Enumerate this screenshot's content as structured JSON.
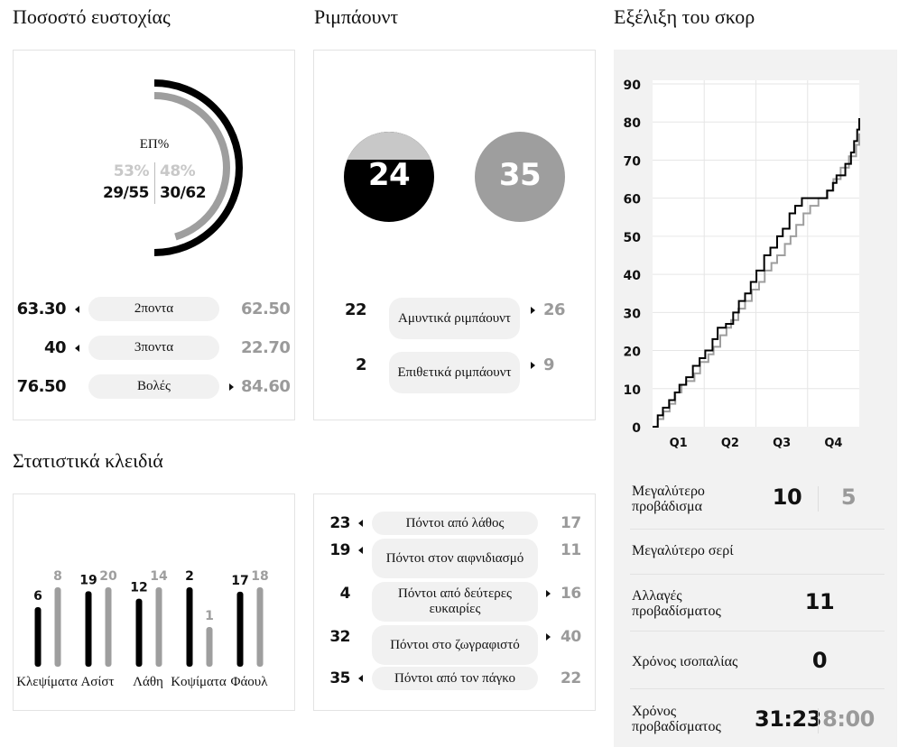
{
  "shooting": {
    "title": "Ποσοστό ευστοχίας",
    "center_label": "ΕΠ%",
    "team1_pct": "53%",
    "team2_pct": "48%",
    "team1_made": "29/55",
    "team2_made": "30/62",
    "team1_fraction": 0.53,
    "team2_fraction": 0.48,
    "rows": [
      {
        "left": "63.30",
        "label": "2ποντα",
        "right": "62.50",
        "arrow": "left"
      },
      {
        "left": "40",
        "label": "3ποντα",
        "right": "22.70",
        "arrow": "left"
      },
      {
        "left": "76.50",
        "label": "Βολές",
        "right": "84.60",
        "arrow": "right"
      }
    ]
  },
  "rebounds": {
    "title": "Ριμπάουντ",
    "team1_total": "24",
    "team2_total": "35",
    "rows": [
      {
        "left": "22",
        "label": "Αμυντικά ριμπάουντ",
        "right": "26",
        "arrow": "right"
      },
      {
        "left": "2",
        "label": "Επιθετικά ριμπάουντ",
        "right": "9",
        "arrow": "right"
      }
    ]
  },
  "score": {
    "title": "Εξέλιξη του σκορ"
  },
  "key_stats": {
    "title": "Στατιστικά κλειδιά"
  },
  "points": {
    "rows": [
      {
        "left": "23",
        "label": "Πόντοι από λάθος",
        "right": "17",
        "arrow": "left"
      },
      {
        "left": "19",
        "label": "Πόντοι στον αιφνιδιασμό",
        "right": "11",
        "arrow": "left"
      },
      {
        "left": "4",
        "label": "Πόντοι από δεύτερες ευκαιρίες",
        "right": "16",
        "arrow": "right"
      },
      {
        "left": "32",
        "label": "Πόντοι στο ζωγραφιστό",
        "right": "40",
        "arrow": "right"
      },
      {
        "left": "35",
        "label": "Πόντοι από τον πάγκο",
        "right": "22",
        "arrow": "left"
      }
    ]
  },
  "lead": {
    "items": [
      {
        "label": "Μεγαλύτερο προβάδισμα",
        "v1": "10",
        "v2": "5"
      },
      {
        "label": "Μεγαλύτερο σερί",
        "v1": "",
        "v2": ""
      },
      {
        "label": "Αλλαγές προβαδίσματος",
        "v1": "11",
        "v2": ""
      },
      {
        "label": "Χρόνος ισοπαλίας",
        "v1": "0",
        "v2": ""
      },
      {
        "label": "Χρόνος προβαδίσματος",
        "v1": "31:23",
        "v2": "8:00"
      }
    ]
  },
  "colors": {
    "team1": "#000000",
    "team2": "#9e9e9e",
    "rebound_top": "#c8c8c8"
  },
  "chart_data": [
    {
      "type": "bar",
      "categories": [
        "Κλεψίματα",
        "Ασίστ",
        "Λάθη",
        "Κοψίματα",
        "Φάουλ"
      ],
      "series": [
        {
          "values": [
            6,
            19,
            12,
            2,
            17
          ]
        },
        {
          "values": [
            8,
            20,
            14,
            1,
            18
          ]
        }
      ],
      "show_values": true
    },
    {
      "type": "line",
      "x_categories": [
        "Q1",
        "Q2",
        "Q3",
        "Q4"
      ],
      "yticks": [
        0,
        10,
        20,
        30,
        40,
        50,
        60,
        70,
        80,
        90
      ],
      "ylim": [
        0,
        90
      ],
      "xlim": [
        0,
        40
      ],
      "grid": true,
      "series": [
        {
          "x": [
            0,
            1,
            2,
            3.2,
            4.3,
            5.2,
            6.5,
            7.8,
            9.1,
            10.2,
            11.6,
            12.6,
            14.2,
            15.6,
            16.7,
            17.9,
            19.0,
            20.1,
            21.6,
            22.8,
            24.1,
            25.2,
            26.5,
            27.6,
            28.9,
            31.0,
            32.7,
            33.8,
            34.9,
            35.6,
            37.3,
            38.4,
            39.0,
            39.6,
            40
          ],
          "y": [
            0,
            3,
            5,
            7,
            9,
            11,
            13,
            16,
            18,
            20,
            23,
            26,
            27,
            30,
            33,
            35,
            38,
            41,
            45,
            47,
            50,
            52,
            56,
            58,
            60,
            60,
            60,
            62,
            64,
            66,
            69,
            72,
            75,
            78,
            81
          ]
        },
        {
          "x": [
            0,
            1,
            2.1,
            3.3,
            4.4,
            5.6,
            6.5,
            8.1,
            9.2,
            10.8,
            11.8,
            13.1,
            14.3,
            15.2,
            16.6,
            17.9,
            19.2,
            20.6,
            21.7,
            23.0,
            24.1,
            25.6,
            26.7,
            27.8,
            29.2,
            30.5,
            32.1,
            33.7,
            35.0,
            36.4,
            38.0,
            39.4,
            40
          ],
          "y": [
            0,
            2,
            4,
            6,
            9,
            11,
            12,
            14,
            17,
            19,
            21,
            24,
            26,
            28,
            31,
            33,
            36,
            38,
            41,
            43,
            45,
            48,
            50,
            53,
            56,
            58,
            60,
            62,
            65,
            68,
            71,
            74,
            77
          ]
        }
      ]
    }
  ]
}
